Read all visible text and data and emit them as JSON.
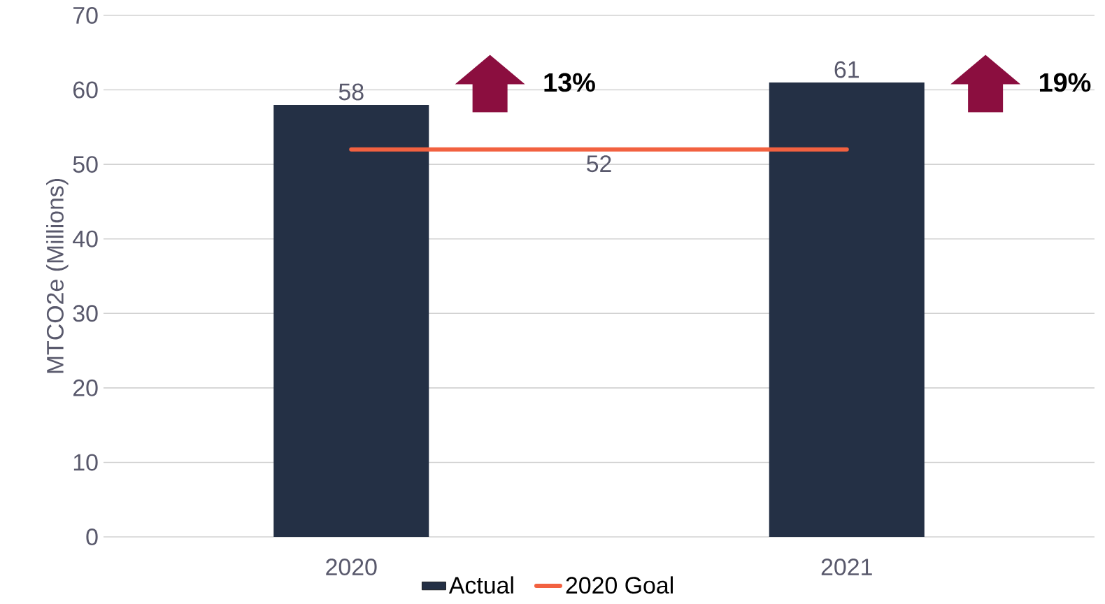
{
  "chart_data": {
    "type": "bar",
    "ylabel": "MTCO2e (Millions)",
    "categories": [
      "2020",
      "2021"
    ],
    "series": [
      {
        "name": "Actual",
        "color": "#243045",
        "values": [
          58,
          61
        ],
        "value_labels": [
          "58",
          "61"
        ]
      },
      {
        "name": "2020 Goal",
        "type": "line",
        "color": "#f26140",
        "values": [
          52,
          52
        ]
      }
    ],
    "annotations": [
      "52",
      "13%",
      "19%"
    ],
    "ylim": [
      0,
      70
    ],
    "yticks": [
      0,
      10,
      20,
      30,
      40,
      50,
      60,
      70
    ],
    "grid": "y",
    "legend": "bottom"
  }
}
